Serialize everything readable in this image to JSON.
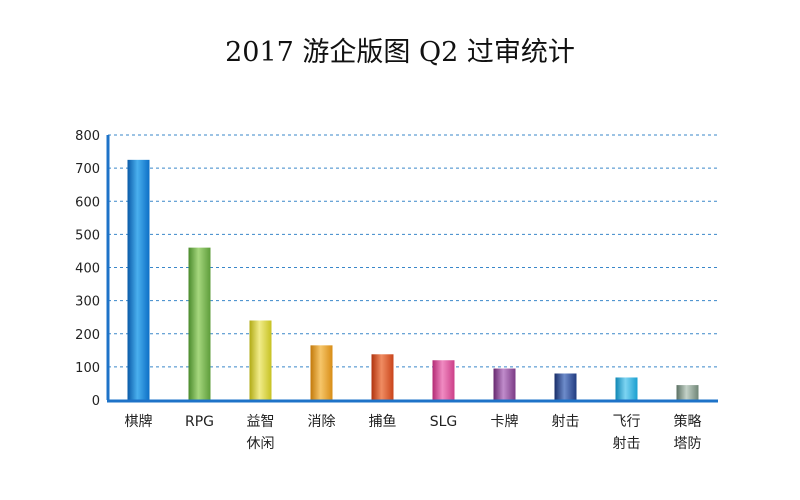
{
  "chart_data": {
    "type": "bar",
    "title": "2017 游企版图 Q2 过审统计",
    "xlabel": "",
    "ylabel": "",
    "ylim": [
      0,
      800
    ],
    "yticks": [
      0,
      100,
      200,
      300,
      400,
      500,
      600,
      700,
      800
    ],
    "grid": true,
    "grid_style": "dashed",
    "categories": [
      [
        "棋牌"
      ],
      [
        "RPG"
      ],
      [
        "益智",
        "休闲"
      ],
      [
        "消除"
      ],
      [
        "捕鱼"
      ],
      [
        "SLG"
      ],
      [
        "卡牌"
      ],
      [
        "射击"
      ],
      [
        "飞行",
        "射击"
      ],
      [
        "策略",
        "塔防"
      ]
    ],
    "values": [
      725,
      460,
      240,
      165,
      138,
      120,
      95,
      80,
      68,
      45
    ],
    "colors": [
      [
        "#0d6fc6",
        "#4ab0ee",
        "#0a5aa8"
      ],
      [
        "#5d9c3a",
        "#a6d77e",
        "#4a8a2c"
      ],
      [
        "#c7c222",
        "#f1ec8a",
        "#b0aa14"
      ],
      [
        "#d88d16",
        "#f6c66a",
        "#c2780a"
      ],
      [
        "#c9441b",
        "#f08c62",
        "#b0330e"
      ],
      [
        "#cc3f88",
        "#f08bc2",
        "#b32a74"
      ],
      [
        "#7b3a85",
        "#c08ccb",
        "#66286f"
      ],
      [
        "#203b80",
        "#6e8ccb",
        "#172d68"
      ],
      [
        "#1a9fd0",
        "#7dd4f2",
        "#0f86b4"
      ],
      [
        "#6f8576",
        "#c4d2c8",
        "#5b7063"
      ]
    ],
    "axis_color": "#1e73c8",
    "grid_color": "#3a87c9"
  }
}
